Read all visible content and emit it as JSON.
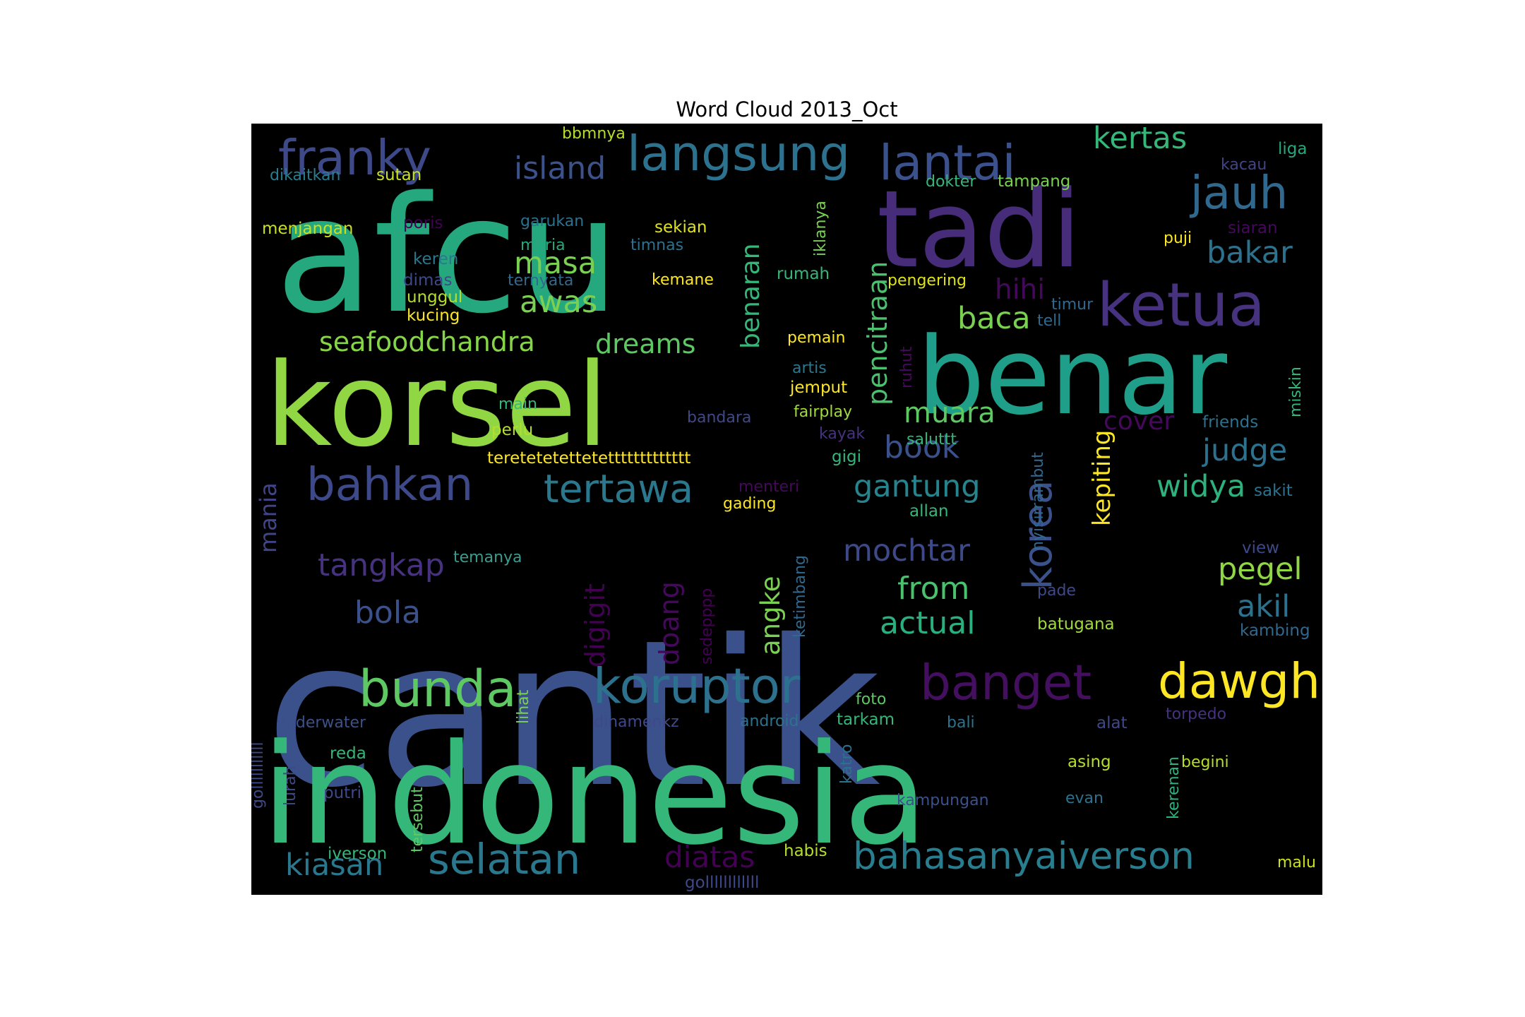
{
  "title": "Word Cloud 2013_Oct",
  "words": [
    {
      "text": "cantik",
      "color": "#3b518b"
    },
    {
      "text": "indonesia",
      "color": "#35b779"
    },
    {
      "text": "afcu",
      "color": "#26a87f"
    },
    {
      "text": "korsel",
      "color": "#90d743"
    },
    {
      "text": "benar",
      "color": "#1f9e89"
    },
    {
      "text": "tadi",
      "color": "#472c7a"
    },
    {
      "text": "ketua",
      "color": "#46327e"
    },
    {
      "text": "langsung",
      "color": "#2c728e"
    },
    {
      "text": "lantai",
      "color": "#3b518b"
    },
    {
      "text": "franky",
      "color": "#3e4989"
    },
    {
      "text": "jauh",
      "color": "#31688e"
    },
    {
      "text": "bahkan",
      "color": "#3e4989"
    },
    {
      "text": "tertawa",
      "color": "#2a788e"
    },
    {
      "text": "koruptor",
      "color": "#2c728e"
    },
    {
      "text": "bunda",
      "color": "#5ec962"
    },
    {
      "text": "banget",
      "color": "#440f5e"
    },
    {
      "text": "dawgh",
      "color": "#fde725"
    },
    {
      "text": "selatan",
      "color": "#2a788e"
    },
    {
      "text": "bahasanyaiverson",
      "color": "#287d8e"
    },
    {
      "text": "island",
      "color": "#3b528b"
    },
    {
      "text": "kertas",
      "color": "#35b779"
    },
    {
      "text": "bakar",
      "color": "#2c728e"
    },
    {
      "text": "masa",
      "color": "#7ad151"
    },
    {
      "text": "awas",
      "color": "#7ad151"
    },
    {
      "text": "hihi",
      "color": "#46085c"
    },
    {
      "text": "baca",
      "color": "#7ad151"
    },
    {
      "text": "seafoodchandra",
      "color": "#86d549"
    },
    {
      "text": "dreams",
      "color": "#5ec962"
    },
    {
      "text": "muara",
      "color": "#5ec962"
    },
    {
      "text": "book",
      "color": "#3b518b"
    },
    {
      "text": "cover",
      "color": "#46085c"
    },
    {
      "text": "judge",
      "color": "#2c728e"
    },
    {
      "text": "widya",
      "color": "#2db27d"
    },
    {
      "text": "gantung",
      "color": "#25848e"
    },
    {
      "text": "tangkap",
      "color": "#46327e"
    },
    {
      "text": "bola",
      "color": "#3b518b"
    },
    {
      "text": "mochtar",
      "color": "#3e4989"
    },
    {
      "text": "from",
      "color": "#4ac16d"
    },
    {
      "text": "actual",
      "color": "#2ab07f"
    },
    {
      "text": "pegel",
      "color": "#90d743"
    },
    {
      "text": "akil",
      "color": "#2c728e"
    },
    {
      "text": "kiasan",
      "color": "#2a788e"
    },
    {
      "text": "diatas",
      "color": "#440154"
    },
    {
      "text": "korea",
      "color": "#3b518b"
    },
    {
      "text": "kepiting",
      "color": "#fde725"
    },
    {
      "text": "pencitraan",
      "color": "#4ac16d"
    },
    {
      "text": "benaran",
      "color": "#35b779"
    },
    {
      "text": "digigit",
      "color": "#440154"
    },
    {
      "text": "doang",
      "color": "#46085c"
    },
    {
      "text": "angke",
      "color": "#7ad151"
    },
    {
      "text": "mania",
      "color": "#414487"
    },
    {
      "text": "bbmnya",
      "color": "#b5de2b"
    },
    {
      "text": "liga",
      "color": "#26a87f"
    },
    {
      "text": "kacau",
      "color": "#414487"
    },
    {
      "text": "dikaitkan",
      "color": "#287d8e"
    },
    {
      "text": "sutan",
      "color": "#cae11f"
    },
    {
      "text": "dokter",
      "color": "#35b779"
    },
    {
      "text": "tampang",
      "color": "#7ad151"
    },
    {
      "text": "menjangan",
      "color": "#cae11f"
    },
    {
      "text": "poris",
      "color": "#440154"
    },
    {
      "text": "garukan",
      "color": "#2c728e"
    },
    {
      "text": "sekian",
      "color": "#dfe318"
    },
    {
      "text": "maria",
      "color": "#26a87f"
    },
    {
      "text": "timnas",
      "color": "#2c728e"
    },
    {
      "text": "keren",
      "color": "#2a788e"
    },
    {
      "text": "dimas",
      "color": "#3e4989"
    },
    {
      "text": "ternyata",
      "color": "#31688e"
    },
    {
      "text": "kemane",
      "color": "#fde725"
    },
    {
      "text": "rumah",
      "color": "#35b779"
    },
    {
      "text": "unggul",
      "color": "#b5de2b"
    },
    {
      "text": "kucing",
      "color": "#fde725"
    },
    {
      "text": "puji",
      "color": "#fde725"
    },
    {
      "text": "siaran",
      "color": "#46085c"
    },
    {
      "text": "pengering",
      "color": "#dfe318"
    },
    {
      "text": "timur",
      "color": "#31688e"
    },
    {
      "text": "tell",
      "color": "#31688e"
    },
    {
      "text": "pemain",
      "color": "#fde725"
    },
    {
      "text": "artis",
      "color": "#2a788e"
    },
    {
      "text": "jemput",
      "color": "#fde725"
    },
    {
      "text": "main",
      "color": "#35b779"
    },
    {
      "text": "bandara",
      "color": "#3e4989"
    },
    {
      "text": "fairplay",
      "color": "#a0da39"
    },
    {
      "text": "perlu",
      "color": "#b5de2b"
    },
    {
      "text": "kayak",
      "color": "#46327e"
    },
    {
      "text": "saluttt",
      "color": "#35b779"
    },
    {
      "text": "friends",
      "color": "#2c728e"
    },
    {
      "text": "teretetetettetettttttttttttt",
      "color": "#fde725"
    },
    {
      "text": "gigi",
      "color": "#35b779"
    },
    {
      "text": "menteri",
      "color": "#46085c"
    },
    {
      "text": "gading",
      "color": "#fde725"
    },
    {
      "text": "allan",
      "color": "#35b779"
    },
    {
      "text": "sakit",
      "color": "#2c728e"
    },
    {
      "text": "temanya",
      "color": "#3b9c8e"
    },
    {
      "text": "view",
      "color": "#3e4989"
    },
    {
      "text": "pade",
      "color": "#3e4989"
    },
    {
      "text": "batugana",
      "color": "#a0da39"
    },
    {
      "text": "kambing",
      "color": "#31688e"
    },
    {
      "text": "underwater",
      "color": "#3b518b"
    },
    {
      "text": "dinamenkz",
      "color": "#3e4989"
    },
    {
      "text": "android",
      "color": "#2c728e"
    },
    {
      "text": "foto",
      "color": "#5ec962"
    },
    {
      "text": "tarkam",
      "color": "#35b779"
    },
    {
      "text": "bali",
      "color": "#2c728e"
    },
    {
      "text": "alat",
      "color": "#3e4989"
    },
    {
      "text": "torpedo",
      "color": "#46327e"
    },
    {
      "text": "reda",
      "color": "#35b779"
    },
    {
      "text": "putri",
      "color": "#3e4989"
    },
    {
      "text": "asing",
      "color": "#b5de2b"
    },
    {
      "text": "begini",
      "color": "#b5de2b"
    },
    {
      "text": "kampungan",
      "color": "#3b518b"
    },
    {
      "text": "evan",
      "color": "#2c728e"
    },
    {
      "text": "iverson",
      "color": "#35b779"
    },
    {
      "text": "habis",
      "color": "#b5de2b"
    },
    {
      "text": "gollllllllllll",
      "color": "#3e4989"
    },
    {
      "text": "malu",
      "color": "#cae11f"
    },
    {
      "text": "iklanya",
      "color": "#7ad151"
    },
    {
      "text": "ruhut",
      "color": "#46085c"
    },
    {
      "text": "nyisirrambut",
      "color": "#31688e"
    },
    {
      "text": "miskin",
      "color": "#35b779"
    },
    {
      "text": "ketimbang",
      "color": "#31688e"
    },
    {
      "text": "sedepppp",
      "color": "#440154"
    },
    {
      "text": "lihat",
      "color": "#7ad151"
    },
    {
      "text": "katro",
      "color": "#2c728e"
    },
    {
      "text": "kerenan",
      "color": "#2db27d"
    },
    {
      "text": "golllllllllll",
      "color": "#3e4989"
    },
    {
      "text": "lurah",
      "color": "#3e4989"
    },
    {
      "text": "tersebut",
      "color": "#5ec962"
    }
  ]
}
